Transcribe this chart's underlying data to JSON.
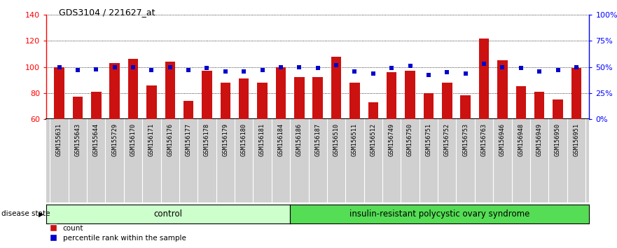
{
  "title": "GDS3104 / 221627_at",
  "samples": [
    "GSM155631",
    "GSM155643",
    "GSM155644",
    "GSM155729",
    "GSM156170",
    "GSM156171",
    "GSM156176",
    "GSM156177",
    "GSM156178",
    "GSM156179",
    "GSM156180",
    "GSM156181",
    "GSM156184",
    "GSM156186",
    "GSM156187",
    "GSM156510",
    "GSM156511",
    "GSM156512",
    "GSM156749",
    "GSM156750",
    "GSM156751",
    "GSM156752",
    "GSM156753",
    "GSM156763",
    "GSM156946",
    "GSM156948",
    "GSM156949",
    "GSM156950",
    "GSM156951"
  ],
  "count_values": [
    100,
    77,
    81,
    103,
    106,
    86,
    104,
    74,
    97,
    88,
    91,
    88,
    100,
    92,
    92,
    108,
    88,
    73,
    96,
    97,
    80,
    88,
    78,
    122,
    105,
    85,
    81,
    75,
    99
  ],
  "percentile_values": [
    50,
    47,
    48,
    50,
    50,
    47,
    50,
    47,
    49,
    46,
    46,
    47,
    50,
    50,
    49,
    52,
    46,
    44,
    49,
    51,
    42,
    45,
    44,
    53,
    50,
    49,
    46,
    47,
    50
  ],
  "control_count": 13,
  "group1_label": "control",
  "group2_label": "insulin-resistant polycystic ovary syndrome",
  "ylim_left": [
    60,
    140
  ],
  "ylim_right": [
    0,
    100
  ],
  "yticks_left": [
    60,
    80,
    100,
    120,
    140
  ],
  "yticks_right": [
    0,
    25,
    50,
    75,
    100
  ],
  "bar_color": "#cc1111",
  "dot_color": "#0000cc",
  "bg_color_control": "#ccffcc",
  "bg_color_disease": "#55dd55",
  "bar_width": 0.55,
  "dot_size": 22,
  "xlabel_bg": "#d0d0d0"
}
